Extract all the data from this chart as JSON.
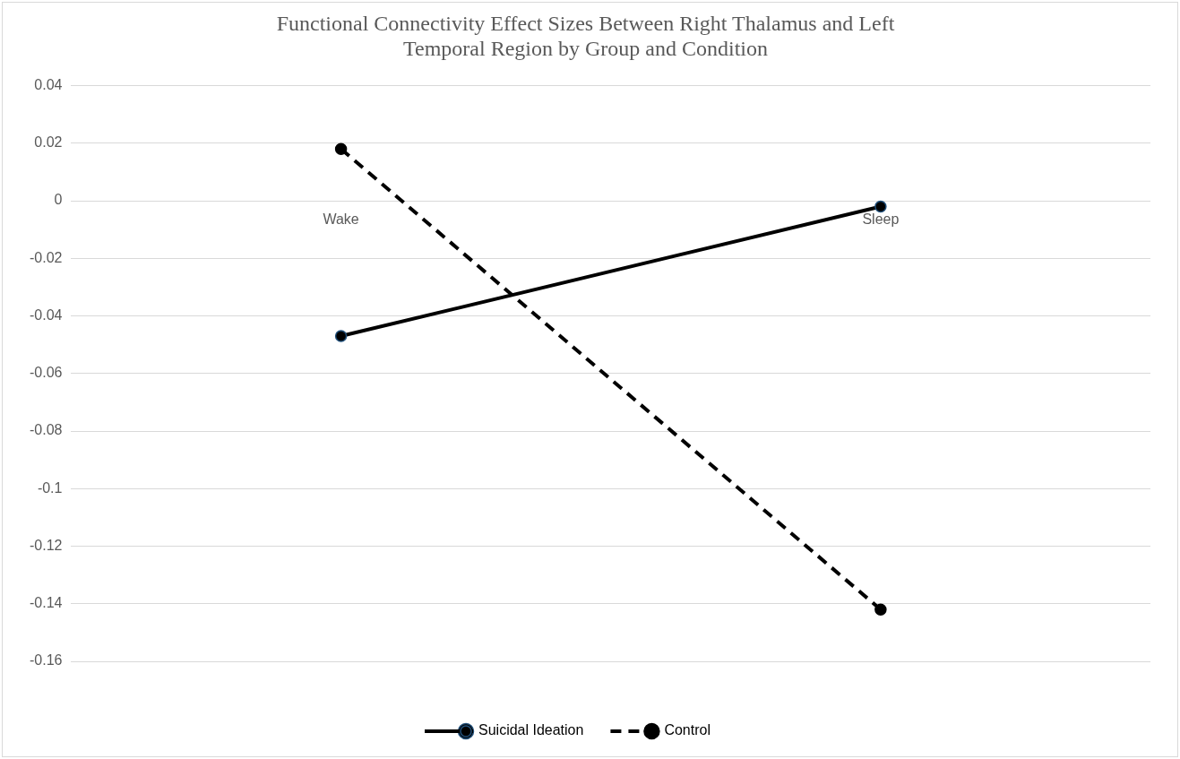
{
  "chart_data": {
    "type": "line",
    "title": "Functional Connectivity Effect Sizes Between Right Thalamus and Left Temporal Region by Group and Condition",
    "categories": [
      "Wake",
      "Sleep"
    ],
    "series": [
      {
        "name": "Suicidal Ideation",
        "color": "#000000",
        "values": [
          -0.047,
          -0.002
        ],
        "line_style": "solid"
      },
      {
        "name": "Control",
        "color": "#000000",
        "values": [
          0.018,
          -0.142
        ],
        "line_style": "dashed"
      }
    ],
    "ylim": [
      -0.16,
      0.04
    ],
    "yticks": [
      -0.16,
      -0.14,
      -0.12,
      -0.1,
      -0.08,
      -0.06,
      -0.04,
      -0.02,
      0,
      0.02,
      0.04
    ],
    "grid": "y",
    "legend": "bottom",
    "marker": "circle"
  }
}
